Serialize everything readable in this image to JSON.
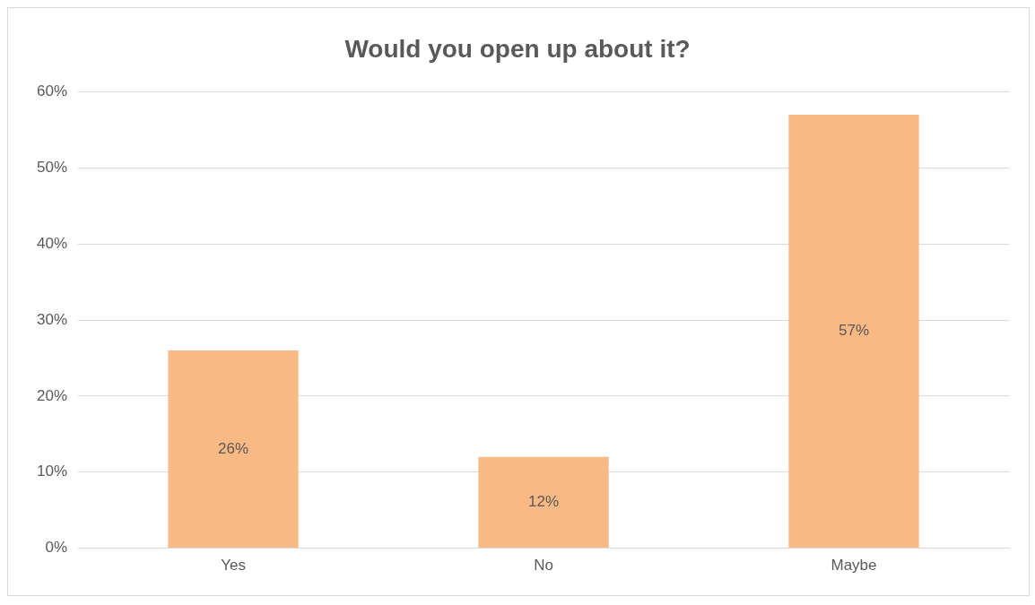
{
  "chart_data": {
    "type": "bar",
    "title": "Would you open up about it?",
    "categories": [
      "Yes",
      "No",
      "Maybe"
    ],
    "values": [
      26,
      12,
      57
    ],
    "color": "#f9b985",
    "value_labels": [
      "26%",
      "12%",
      "57%"
    ],
    "ylim": [
      0,
      60
    ],
    "yticks": [
      {
        "value": 0,
        "label": "0%"
      },
      {
        "value": 10,
        "label": "10%"
      },
      {
        "value": 20,
        "label": "20%"
      },
      {
        "value": 30,
        "label": "30%"
      },
      {
        "value": 40,
        "label": "40%"
      },
      {
        "value": 50,
        "label": "50%"
      },
      {
        "value": 60,
        "label": "60%"
      }
    ],
    "grid": "y",
    "legend": false
  }
}
